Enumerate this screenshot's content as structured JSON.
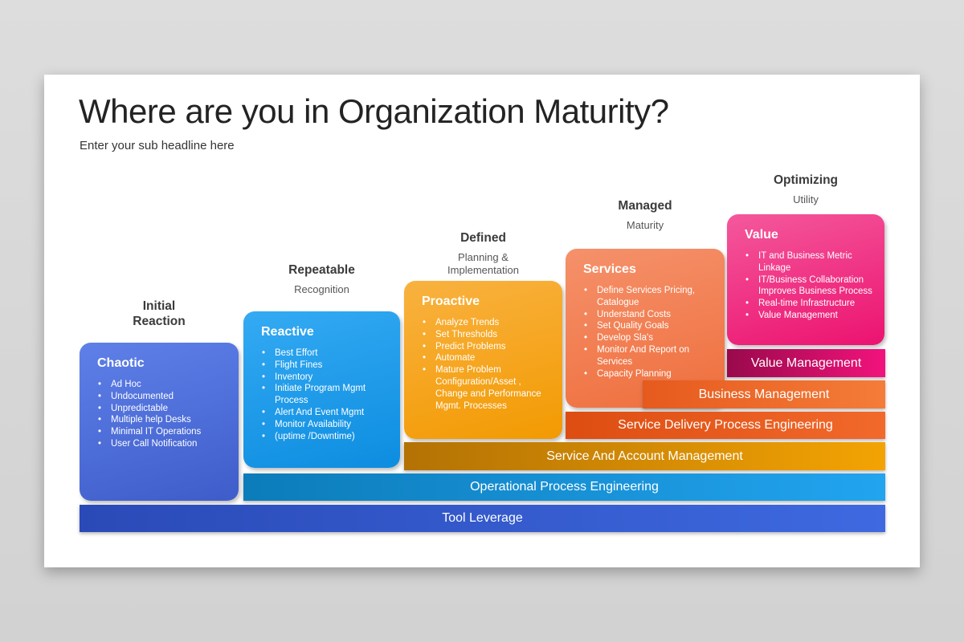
{
  "slide": {
    "title": "Where are you in Organization Maturity?",
    "subtitle": "Enter your sub headline here"
  },
  "stages": [
    {
      "name": "Initial Reaction",
      "subtitle": ""
    },
    {
      "name": "Repeatable",
      "subtitle": "Recognition"
    },
    {
      "name": "Defined",
      "subtitle": "Planning & Implementation"
    },
    {
      "name": "Managed",
      "subtitle": "Maturity"
    },
    {
      "name": "Optimizing",
      "subtitle": "Utility"
    }
  ],
  "columns": [
    {
      "title": "Chaotic",
      "color_top": "#5e80e8",
      "color_bottom": "#3f5dca",
      "bullets": [
        "Ad Hoc",
        "Undocumented",
        "Unpredictable",
        "Multiple help Desks",
        "Minimal IT Operations",
        "User Call Notification"
      ]
    },
    {
      "title": "Reactive",
      "color_top": "#34aaf3",
      "color_bottom": "#0d8de0",
      "bullets": [
        "Best Effort",
        "Flight Fines",
        "Inventory",
        "Initiate Program Mgmt Process",
        "Alert And Event Mgmt",
        "Monitor Availability",
        "(uptime /Downtime)"
      ]
    },
    {
      "title": "Proactive",
      "color_top": "#f9b240",
      "color_bottom": "#f29a02",
      "bullets": [
        "Analyze Trends",
        "Set Thresholds",
        "Predict Problems",
        "Automate",
        "Mature Problem Configuration/Asset , Change and Performance Mgmt. Processes"
      ]
    },
    {
      "title": "Services",
      "color_top": "#f5916b",
      "color_bottom": "#ef6f3d",
      "bullets": [
        "Define Services Pricing, Catalogue",
        "Understand Costs",
        "Set Quality Goals",
        "Develop Sla's",
        "Monitor And Report on Services",
        "Capacity Planning"
      ]
    },
    {
      "title": "Value",
      "color_top": "#f4589c",
      "color_bottom": "#ec1370",
      "bullets": [
        "IT and Business Metric Linkage",
        "IT/Business Collaboration Improves Business Process",
        "Real-time Infrastructure",
        "Value Management"
      ]
    }
  ],
  "bars": [
    {
      "label": "Value Management",
      "color_left": "#99094b",
      "color_right": "#f2137c"
    },
    {
      "label": "Business Management",
      "color_left": "#e65a1d",
      "color_right": "#f47c39"
    },
    {
      "label": "Service Delivery Process Engineering",
      "color_left": "#dd4d11",
      "color_right": "#f2692c"
    },
    {
      "label": "Service And Account Management",
      "color_left": "#b37204",
      "color_right": "#f3a303"
    },
    {
      "label": "Operational Process Engineering",
      "color_left": "#0c7cba",
      "color_right": "#22a4ef"
    },
    {
      "label": "Tool Leverage",
      "color_left": "#2a4ab7",
      "color_right": "#3e69e0"
    }
  ]
}
